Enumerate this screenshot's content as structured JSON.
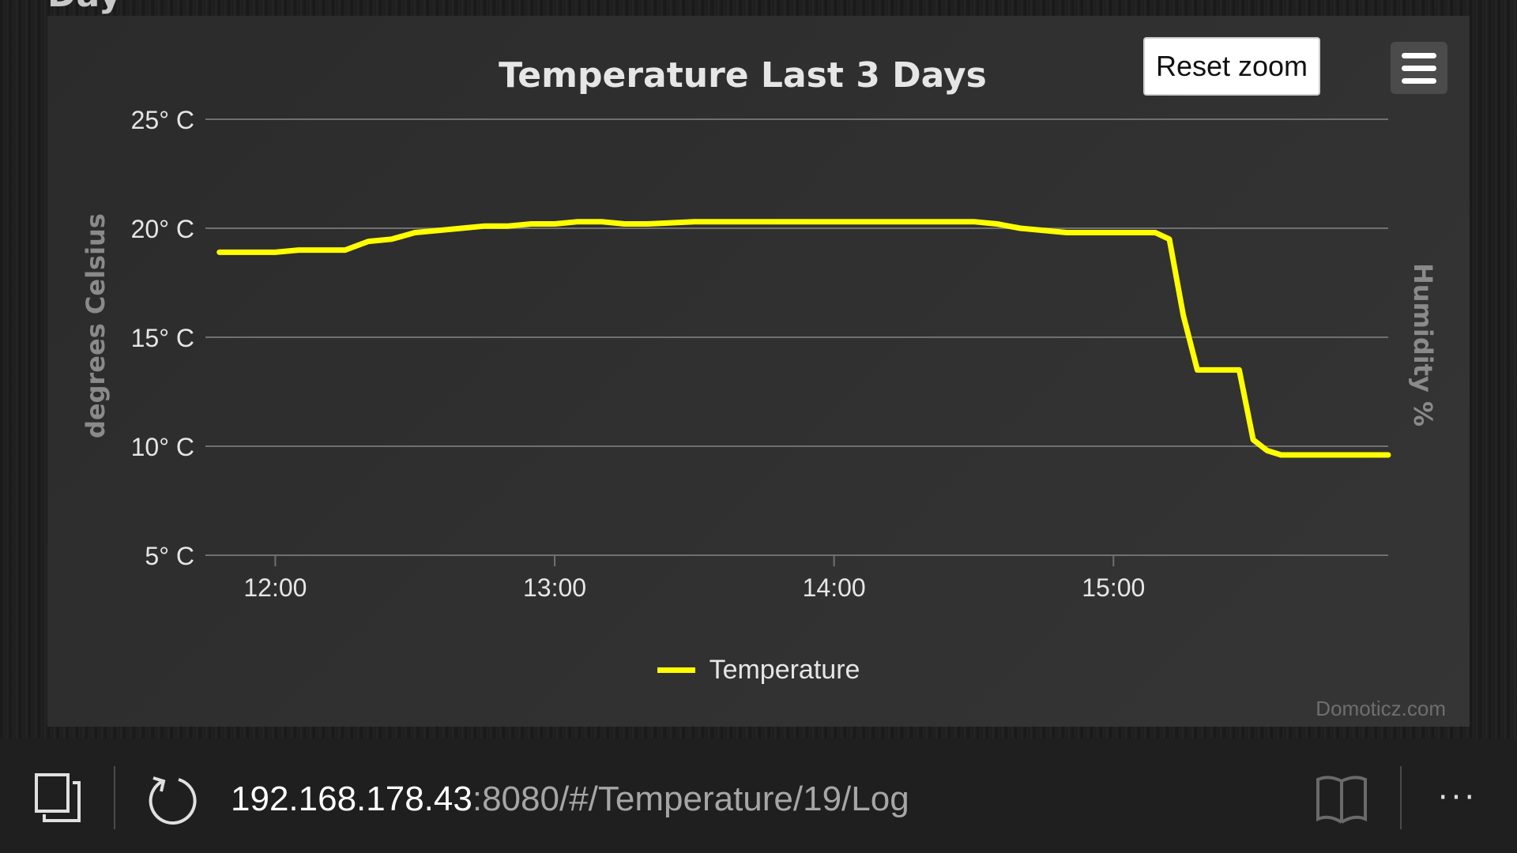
{
  "page": {
    "heading_fragment": "Day"
  },
  "chart": {
    "reset_zoom_label": "Reset zoom",
    "menu_icon": "hamburger-menu-icon",
    "credits": "Domoticz.com"
  },
  "chart_data": {
    "type": "line",
    "title": "Temperature Last 3 Days",
    "ylabel": "degrees Celsius",
    "y2label": "Humidity %",
    "ylim": [
      5,
      25
    ],
    "yticks": [
      5,
      10,
      15,
      20,
      25
    ],
    "ytick_labels": [
      "5° C",
      "10° C",
      "15° C",
      "20° C",
      "25° C"
    ],
    "xlim": [
      "11:45",
      "15:59"
    ],
    "xticks": [
      "12:00",
      "13:00",
      "14:00",
      "15:00"
    ],
    "grid": true,
    "legend_position": "bottom-center",
    "series": [
      {
        "name": "Temperature",
        "color": "#ffff00",
        "x": [
          "11:48",
          "12:00",
          "12:05",
          "12:15",
          "12:20",
          "12:25",
          "12:30",
          "12:35",
          "12:40",
          "12:45",
          "12:50",
          "12:55",
          "13:00",
          "13:05",
          "13:10",
          "13:15",
          "13:20",
          "13:30",
          "13:40",
          "13:50",
          "14:00",
          "14:10",
          "14:20",
          "14:30",
          "14:35",
          "14:40",
          "14:50",
          "15:00",
          "15:03",
          "15:06",
          "15:09",
          "15:12",
          "15:15",
          "15:18",
          "15:21",
          "15:24",
          "15:27",
          "15:30",
          "15:33",
          "15:36",
          "15:40",
          "15:50",
          "15:59"
        ],
        "y": [
          18.9,
          18.9,
          19.0,
          19.0,
          19.4,
          19.5,
          19.8,
          19.9,
          20.0,
          20.1,
          20.1,
          20.2,
          20.2,
          20.3,
          20.3,
          20.2,
          20.2,
          20.3,
          20.3,
          20.3,
          20.3,
          20.3,
          20.3,
          20.3,
          20.2,
          20.0,
          19.8,
          19.8,
          19.8,
          19.8,
          19.8,
          19.5,
          16.0,
          13.5,
          13.5,
          13.5,
          13.5,
          10.3,
          9.8,
          9.6,
          9.6,
          9.6,
          9.6
        ]
      }
    ]
  },
  "address_bar": {
    "url_host": "192.168.178.43",
    "url_path": ":8080/#/Temperature/19/Log",
    "tabs_icon": "tabs-icon",
    "refresh_icon": "refresh-icon",
    "reading_view_icon": "reading-view-icon",
    "more_label": "···"
  }
}
